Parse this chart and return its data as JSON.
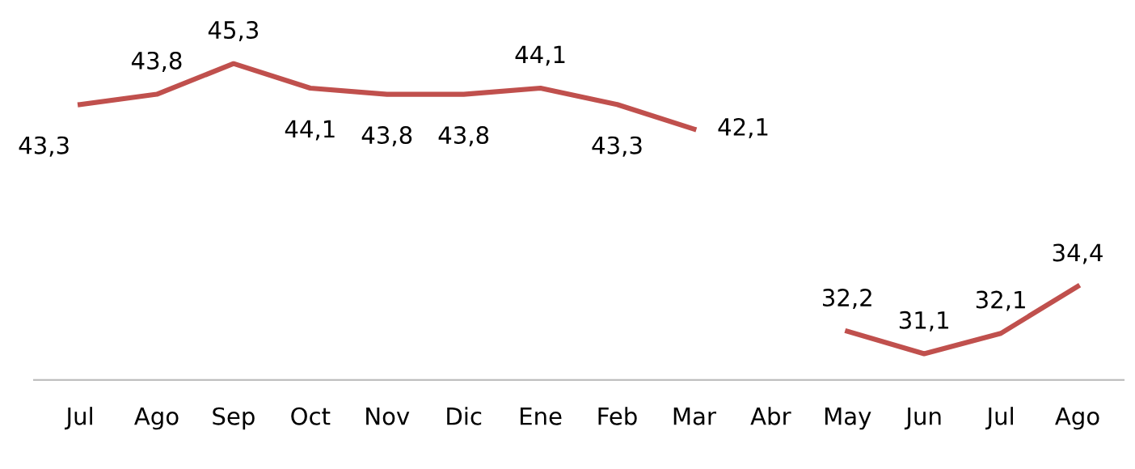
{
  "chart_data": {
    "type": "line",
    "categories": [
      "Jul",
      "Ago",
      "Sep",
      "Oct",
      "Nov",
      "Dic",
      "Ene",
      "Feb",
      "Mar",
      "Abr",
      "May",
      "Jun",
      "Jul",
      "Ago"
    ],
    "series": [
      {
        "color": "#c0504d",
        "values": [
          43.3,
          43.8,
          45.3,
          44.1,
          43.8,
          43.8,
          44.1,
          43.3,
          42.1,
          null,
          32.2,
          31.1,
          32.1,
          34.4
        ],
        "value_labels": [
          "43,3",
          "43,8",
          "45,3",
          "44,1",
          "43,8",
          "43,8",
          "44,1",
          "43,3",
          "42,1",
          null,
          "32,2",
          "31,1",
          "32,1",
          "34,4"
        ]
      }
    ],
    "grid": false,
    "legend": false,
    "marker": "none",
    "line_style": "solid"
  }
}
